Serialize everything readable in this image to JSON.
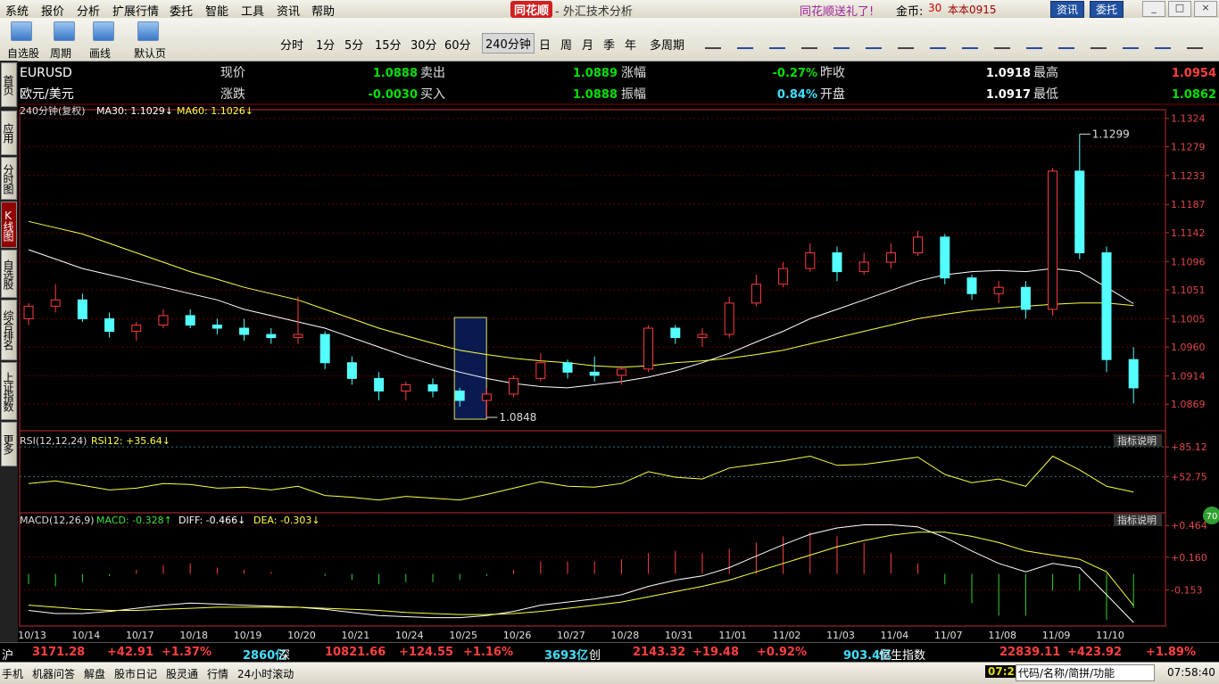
{
  "menu": [
    "系统",
    "报价",
    "分析",
    "扩展行情",
    "委托",
    "智能",
    "工具",
    "资讯",
    "帮助"
  ],
  "app_title": "同花顺",
  "window_title": "- 外汇技术分析",
  "top_right": {
    "promo": "同花顺送礼了!",
    "coin_label": "金币:",
    "coin_value": "30",
    "user": "本本0915",
    "buttons": [
      "资讯",
      "委托"
    ]
  },
  "toolbar": {
    "tools": [
      "自选股",
      "周期",
      "画线",
      "默认页"
    ],
    "periods": [
      "分时",
      "1分",
      "5分",
      "15分",
      "30分",
      "60分",
      "240分钟",
      "日",
      "周",
      "月",
      "季",
      "年",
      "多周期"
    ],
    "active_period": 6
  },
  "side_tabs": [
    "首页",
    "应用",
    "分时图",
    "K线图",
    "自选股",
    "综合排名",
    "上证指数",
    "更多"
  ],
  "active_tab": 3,
  "quote": {
    "symbol": "EURUSD",
    "name": "欧元/美元",
    "rows": [
      [
        {
          "label": "现价",
          "value": "1.0888",
          "color": "#00e000"
        },
        {
          "label": "卖出",
          "value": "1.0889",
          "color": "#00e000"
        },
        {
          "label": "涨幅",
          "value": "-0.27%",
          "color": "#00e000"
        },
        {
          "label": "昨收",
          "value": "1.0918",
          "color": "#ffffff"
        },
        {
          "label": "最高",
          "value": "1.0954",
          "color": "#ff4040"
        }
      ],
      [
        {
          "label": "涨跌",
          "value": "-0.0030",
          "color": "#00e000"
        },
        {
          "label": "买入",
          "value": "1.0888",
          "color": "#00e000"
        },
        {
          "label": "振幅",
          "value": "0.84%",
          "color": "#40e0ff"
        },
        {
          "label": "开盘",
          "value": "1.0917",
          "color": "#ffffff"
        },
        {
          "label": "最低",
          "value": "1.0862",
          "color": "#00e000"
        }
      ]
    ]
  },
  "chart_data": [
    {
      "type": "candlestick",
      "title": "240分钟(复权)",
      "categories": [
        "10/13",
        null,
        "10/14",
        null,
        "10/17",
        null,
        "10/18",
        null,
        "10/19",
        null,
        "10/20",
        null,
        "10/21",
        null,
        "10/24",
        null,
        "10/25",
        null,
        "10/26",
        null,
        "10/27",
        null,
        "10/28",
        null,
        "10/31",
        null,
        "11/01",
        null,
        "11/02",
        null,
        "11/03",
        null,
        "11/04",
        null,
        "11/07",
        null,
        "11/08",
        null,
        "11/09",
        null,
        "11/10",
        null
      ],
      "open": [
        1.1005,
        1.1025,
        1.1035,
        1.1005,
        1.0985,
        1.0995,
        1.101,
        1.0995,
        1.099,
        1.098,
        1.0975,
        1.098,
        1.0935,
        1.091,
        1.089,
        1.09,
        1.089,
        1.0875,
        1.0885,
        1.091,
        1.0935,
        1.092,
        1.0915,
        1.0925,
        1.099,
        1.0975,
        1.098,
        1.103,
        1.106,
        1.1085,
        1.111,
        1.108,
        1.1095,
        1.111,
        1.1135,
        1.107,
        1.1045,
        1.1055,
        1.102,
        1.124,
        1.111,
        1.094
      ],
      "high": [
        1.103,
        1.106,
        1.1045,
        1.1015,
        1.1,
        1.102,
        1.102,
        1.1005,
        1.1005,
        1.099,
        1.104,
        1.0985,
        1.0945,
        1.092,
        1.0905,
        1.091,
        1.0895,
        1.0895,
        1.0915,
        1.095,
        1.094,
        1.0945,
        1.093,
        1.0995,
        1.0995,
        1.099,
        1.104,
        1.1075,
        1.1095,
        1.1125,
        1.112,
        1.111,
        1.1125,
        1.1145,
        1.114,
        1.1075,
        1.1065,
        1.1065,
        1.1245,
        1.1299,
        1.112,
        1.096
      ],
      "low": [
        1.0995,
        1.1015,
        1.1,
        1.0975,
        1.097,
        1.099,
        1.099,
        1.098,
        1.097,
        1.0965,
        1.0965,
        1.0925,
        1.09,
        1.0875,
        1.0875,
        1.088,
        1.0865,
        1.0848,
        1.088,
        1.0905,
        1.091,
        1.0905,
        1.09,
        1.092,
        1.0965,
        1.096,
        1.0975,
        1.1025,
        1.1055,
        1.108,
        1.1065,
        1.1075,
        1.1085,
        1.1105,
        1.106,
        1.1035,
        1.103,
        1.1005,
        1.101,
        1.11,
        1.092,
        1.087
      ],
      "close": [
        1.1025,
        1.1035,
        1.1005,
        1.0985,
        1.0995,
        1.101,
        1.0995,
        1.099,
        1.098,
        1.0975,
        1.098,
        1.0935,
        1.091,
        1.089,
        1.09,
        1.089,
        1.0875,
        1.0885,
        1.091,
        1.0935,
        1.092,
        1.0915,
        1.0925,
        1.099,
        1.0975,
        1.098,
        1.103,
        1.106,
        1.1085,
        1.111,
        1.108,
        1.1095,
        1.111,
        1.1135,
        1.107,
        1.1045,
        1.1055,
        1.102,
        1.124,
        1.111,
        1.094,
        1.0895
      ],
      "up_color": "#ff3c3c",
      "down_color": "#54ffff",
      "series": [
        {
          "name": "MA30: 1.1029↓",
          "color": "#ffffff",
          "values": [
            1.1115,
            1.11,
            1.1085,
            1.1075,
            1.1065,
            1.1055,
            1.1045,
            1.1035,
            1.102,
            1.101,
            1.1,
            1.099,
            1.0975,
            1.096,
            1.0945,
            1.0932,
            1.092,
            1.091,
            1.0902,
            1.0897,
            1.0895,
            1.09,
            1.0905,
            1.0912,
            1.0922,
            1.0935,
            1.095,
            1.0968,
            1.0985,
            1.1005,
            1.102,
            1.1035,
            1.105,
            1.1065,
            1.1075,
            1.108,
            1.1082,
            1.108,
            1.1085,
            1.108,
            1.1055,
            1.1029
          ]
        },
        {
          "name": "MA60: 1.1026↓",
          "color": "#ffff40",
          "values": [
            1.116,
            1.115,
            1.114,
            1.1125,
            1.111,
            1.1095,
            1.108,
            1.1068,
            1.1055,
            1.1045,
            1.1035,
            1.102,
            1.1005,
            1.099,
            1.0978,
            1.0966,
            1.0955,
            1.0948,
            1.0942,
            1.0938,
            1.0935,
            1.093,
            1.0928,
            1.093,
            1.0935,
            1.0938,
            1.0942,
            1.0948,
            1.0955,
            1.0965,
            1.0975,
            1.0985,
            1.0995,
            1.1005,
            1.1012,
            1.1018,
            1.1022,
            1.1025,
            1.1028,
            1.103,
            1.103,
            1.1026
          ]
        }
      ],
      "annotations": [
        {
          "label": "1.1299",
          "x": "11/09",
          "value": 1.1299
        },
        {
          "label": "1.0848",
          "x": "10/25",
          "value": 1.0848
        }
      ],
      "ylim": [
        1.0831,
        1.1335
      ],
      "yticks": [
        1.0869,
        1.0914,
        {
          "value": 1.096,
          "label": "1.0960"
        },
        1.1005,
        1.1051,
        1.1096,
        1.1142,
        1.1187,
        1.1233,
        1.1279,
        1.1324
      ],
      "grid": true
    },
    {
      "type": "line",
      "title": "RSI(12,12,24)",
      "button": "指标说明",
      "series": [
        {
          "name": "RSI12: +35.64↓",
          "color": "#ffff40",
          "values": [
            45,
            48,
            43,
            38,
            40,
            45,
            44,
            40,
            41,
            38,
            42,
            32,
            30,
            27,
            31,
            29,
            27,
            33,
            40,
            47,
            42,
            41,
            45,
            58,
            52,
            50,
            62,
            66,
            70,
            75,
            65,
            66,
            70,
            74,
            55,
            46,
            50,
            42,
            75,
            60,
            42,
            35.64
          ]
        }
      ],
      "ylim": [
        13,
        98
      ],
      "yticks": [
        {
          "value": 85.12,
          "label": "+85.12"
        },
        {
          "value": 52.75,
          "label": "+52.75"
        }
      ],
      "grid": true
    },
    {
      "type": "macd",
      "title": "MACD(12,26,9)",
      "button": "指标说明",
      "badge": "70",
      "series": [
        {
          "name": "MACD: -0.328↑",
          "style": "bar",
          "up_color": "#ff4040",
          "down_color": "#30d030",
          "values": [
            -0.1,
            -0.12,
            -0.08,
            -0.02,
            0.04,
            0.08,
            0.1,
            0.06,
            0.04,
            0.02,
            0.0,
            -0.02,
            -0.06,
            -0.1,
            -0.08,
            -0.08,
            -0.06,
            -0.02,
            0.04,
            0.12,
            0.12,
            0.12,
            0.14,
            0.2,
            0.22,
            0.2,
            0.24,
            0.3,
            0.36,
            0.4,
            0.36,
            0.3,
            0.2,
            0.1,
            -0.1,
            -0.28,
            -0.4,
            -0.4,
            -0.16,
            -0.16,
            -0.44,
            -0.328
          ]
        },
        {
          "name": "DIFF: -0.466↓",
          "style": "line",
          "color": "#ffffff",
          "values": [
            -0.35,
            -0.38,
            -0.38,
            -0.36,
            -0.33,
            -0.3,
            -0.28,
            -0.29,
            -0.3,
            -0.31,
            -0.32,
            -0.34,
            -0.37,
            -0.4,
            -0.41,
            -0.42,
            -0.42,
            -0.4,
            -0.36,
            -0.3,
            -0.27,
            -0.24,
            -0.2,
            -0.12,
            -0.06,
            -0.02,
            0.06,
            0.17,
            0.28,
            0.38,
            0.44,
            0.47,
            0.47,
            0.45,
            0.35,
            0.22,
            0.1,
            0.02,
            0.1,
            0.06,
            -0.2,
            -0.466
          ]
        },
        {
          "name": "DEA: -0.303↓",
          "style": "line",
          "color": "#ffff40",
          "values": [
            -0.3,
            -0.32,
            -0.34,
            -0.35,
            -0.35,
            -0.34,
            -0.33,
            -0.32,
            -0.32,
            -0.32,
            -0.32,
            -0.33,
            -0.34,
            -0.35,
            -0.37,
            -0.38,
            -0.39,
            -0.39,
            -0.38,
            -0.36,
            -0.33,
            -0.3,
            -0.27,
            -0.22,
            -0.17,
            -0.12,
            -0.06,
            0.02,
            0.1,
            0.18,
            0.26,
            0.32,
            0.37,
            0.4,
            0.4,
            0.36,
            0.3,
            0.22,
            0.18,
            0.14,
            0.02,
            -0.303
          ]
        }
      ],
      "ylim": [
        -0.5,
        0.56
      ],
      "yticks": [
        {
          "value": 0.464,
          "label": "+0.464"
        },
        {
          "value": 0.16,
          "label": "+0.160"
        },
        -0.153
      ],
      "grid": true
    }
  ],
  "ticker": [
    {
      "text": "沪",
      "color": "#ffffff"
    },
    {
      "text": "3171.28",
      "color": "#ff4040"
    },
    {
      "text": "+42.91",
      "color": "#ff4040"
    },
    {
      "text": "+1.37%",
      "color": "#ff4040"
    },
    {
      "text": "2860亿",
      "color": "#40e0ff"
    },
    {
      "text": "深",
      "color": "#ffffff"
    },
    {
      "text": "10821.66",
      "color": "#ff4040"
    },
    {
      "text": "+124.55",
      "color": "#ff4040"
    },
    {
      "text": "+1.16%",
      "color": "#ff4040"
    },
    {
      "text": "3693亿",
      "color": "#40e0ff"
    },
    {
      "text": "创",
      "color": "#ffffff"
    },
    {
      "text": "2143.32",
      "color": "#ff4040"
    },
    {
      "text": "+19.48",
      "color": "#ff4040"
    },
    {
      "text": "+0.92%",
      "color": "#ff4040"
    },
    {
      "text": "903.4亿",
      "color": "#40e0ff"
    },
    {
      "text": "恒生指数",
      "color": "#ffffff"
    },
    {
      "text": "22839.11",
      "color": "#ff4040"
    },
    {
      "text": "+423.92",
      "color": "#ff4040"
    },
    {
      "text": "+1.89%",
      "color": "#ff4040"
    }
  ],
  "status": {
    "links": [
      "手机",
      "机器问答",
      "解盘",
      "股市日记",
      "股灵通",
      "行情",
      "24小时滚动"
    ],
    "time_short": "07:2",
    "search": "代码/名称/简拼/功能",
    "clock": "07:58:40"
  }
}
